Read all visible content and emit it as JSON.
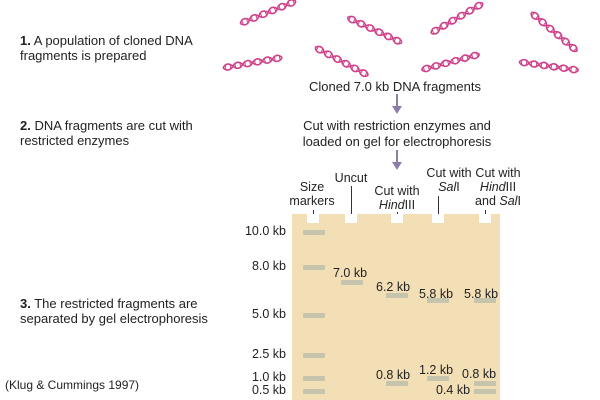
{
  "steps": [
    {
      "num": "1.",
      "text": "A population of cloned DNA fragments is prepared"
    },
    {
      "num": "2.",
      "text": "DNA fragments are cut with restricted enzymes"
    },
    {
      "num": "3.",
      "text": "The restricted fragments are separated by gel electrophoresis"
    }
  ],
  "captions": {
    "cloned": "Cloned 7.0 kb DNA fragments",
    "cut": "Cut with restriction enzymes and loaded on gel for electrophoresis"
  },
  "lanes": {
    "size_markers": "Size markers",
    "uncut": "Uncut",
    "hind_prefix": "Cut with",
    "hind_enzyme": "Hind",
    "hind_suffix": "III",
    "sal_prefix": "Cut with",
    "sal_enzyme": "Sal",
    "sal_suffix": "I",
    "both_prefix": "Cut with",
    "both_enzyme1": "Hind",
    "both_mid": "III and ",
    "both_enzyme2": "Sal",
    "both_suffix": "I"
  },
  "markers": [
    "10.0 kb",
    "8.0 kb",
    "5.0 kb",
    "2.5 kb",
    "1.0 kb",
    "0.5 kb"
  ],
  "band_labels": {
    "uncut": "7.0 kb",
    "hind_large": "6.2 kb",
    "hind_small": "0.8 kb",
    "sal_large": "5.8 kb",
    "sal_small": "1.2 kb",
    "both_large": "5.8 kb",
    "both_mid": "0.8 kb",
    "both_small": "0.4 kb"
  },
  "citation": "(Klug & Cummings 1997)",
  "colors": {
    "dna": "#d0408a",
    "gel": "#f3dfb6",
    "band": "#c7c4ae",
    "arrow": "#8a7fa6"
  }
}
